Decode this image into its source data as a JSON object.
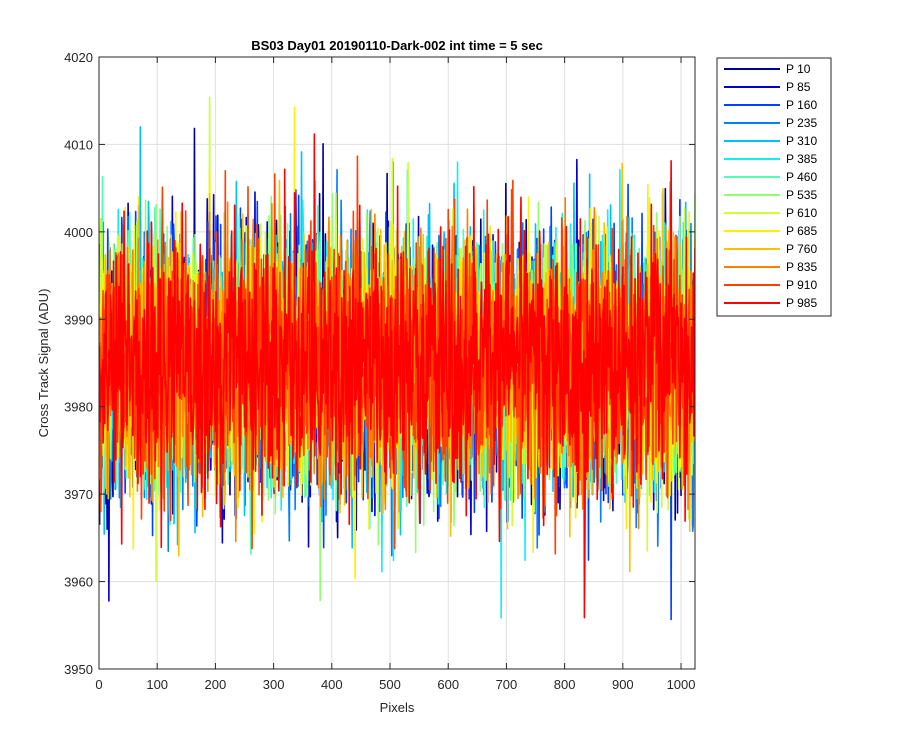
{
  "chart_data": {
    "type": "line",
    "title": "BS03 Day01 20190110-Dark-002 int time = 5 sec",
    "xlabel": "Pixels",
    "ylabel": "Cross Track Signal (ADU)",
    "xlim": [
      0,
      1024
    ],
    "ylim": [
      3950,
      4020
    ],
    "x_ticks": [
      0,
      100,
      200,
      300,
      400,
      500,
      600,
      700,
      800,
      900,
      1000
    ],
    "y_ticks": [
      3950,
      3960,
      3970,
      3980,
      3990,
      4000,
      4010,
      4020
    ],
    "grid": true,
    "legend_position": "outside-top-right",
    "series_stats": {
      "mean": 3985,
      "noise_sd": 7.2,
      "n_points": 1024
    },
    "series": [
      {
        "name": "P 10",
        "color": "#00008f"
      },
      {
        "name": "P 85",
        "color": "#0000cf"
      },
      {
        "name": "P 160",
        "color": "#0040ff"
      },
      {
        "name": "P 235",
        "color": "#0080ff"
      },
      {
        "name": "P 310",
        "color": "#00bfff"
      },
      {
        "name": "P 385",
        "color": "#10f0ef"
      },
      {
        "name": "P 460",
        "color": "#50ffaf"
      },
      {
        "name": "P 535",
        "color": "#8fff70"
      },
      {
        "name": "P 610",
        "color": "#cfff30"
      },
      {
        "name": "P 685",
        "color": "#ffef00"
      },
      {
        "name": "P 760",
        "color": "#ffbf00"
      },
      {
        "name": "P 835",
        "color": "#ff8000"
      },
      {
        "name": "P 910",
        "color": "#ff4000"
      },
      {
        "name": "P 985",
        "color": "#ff0000"
      }
    ]
  }
}
